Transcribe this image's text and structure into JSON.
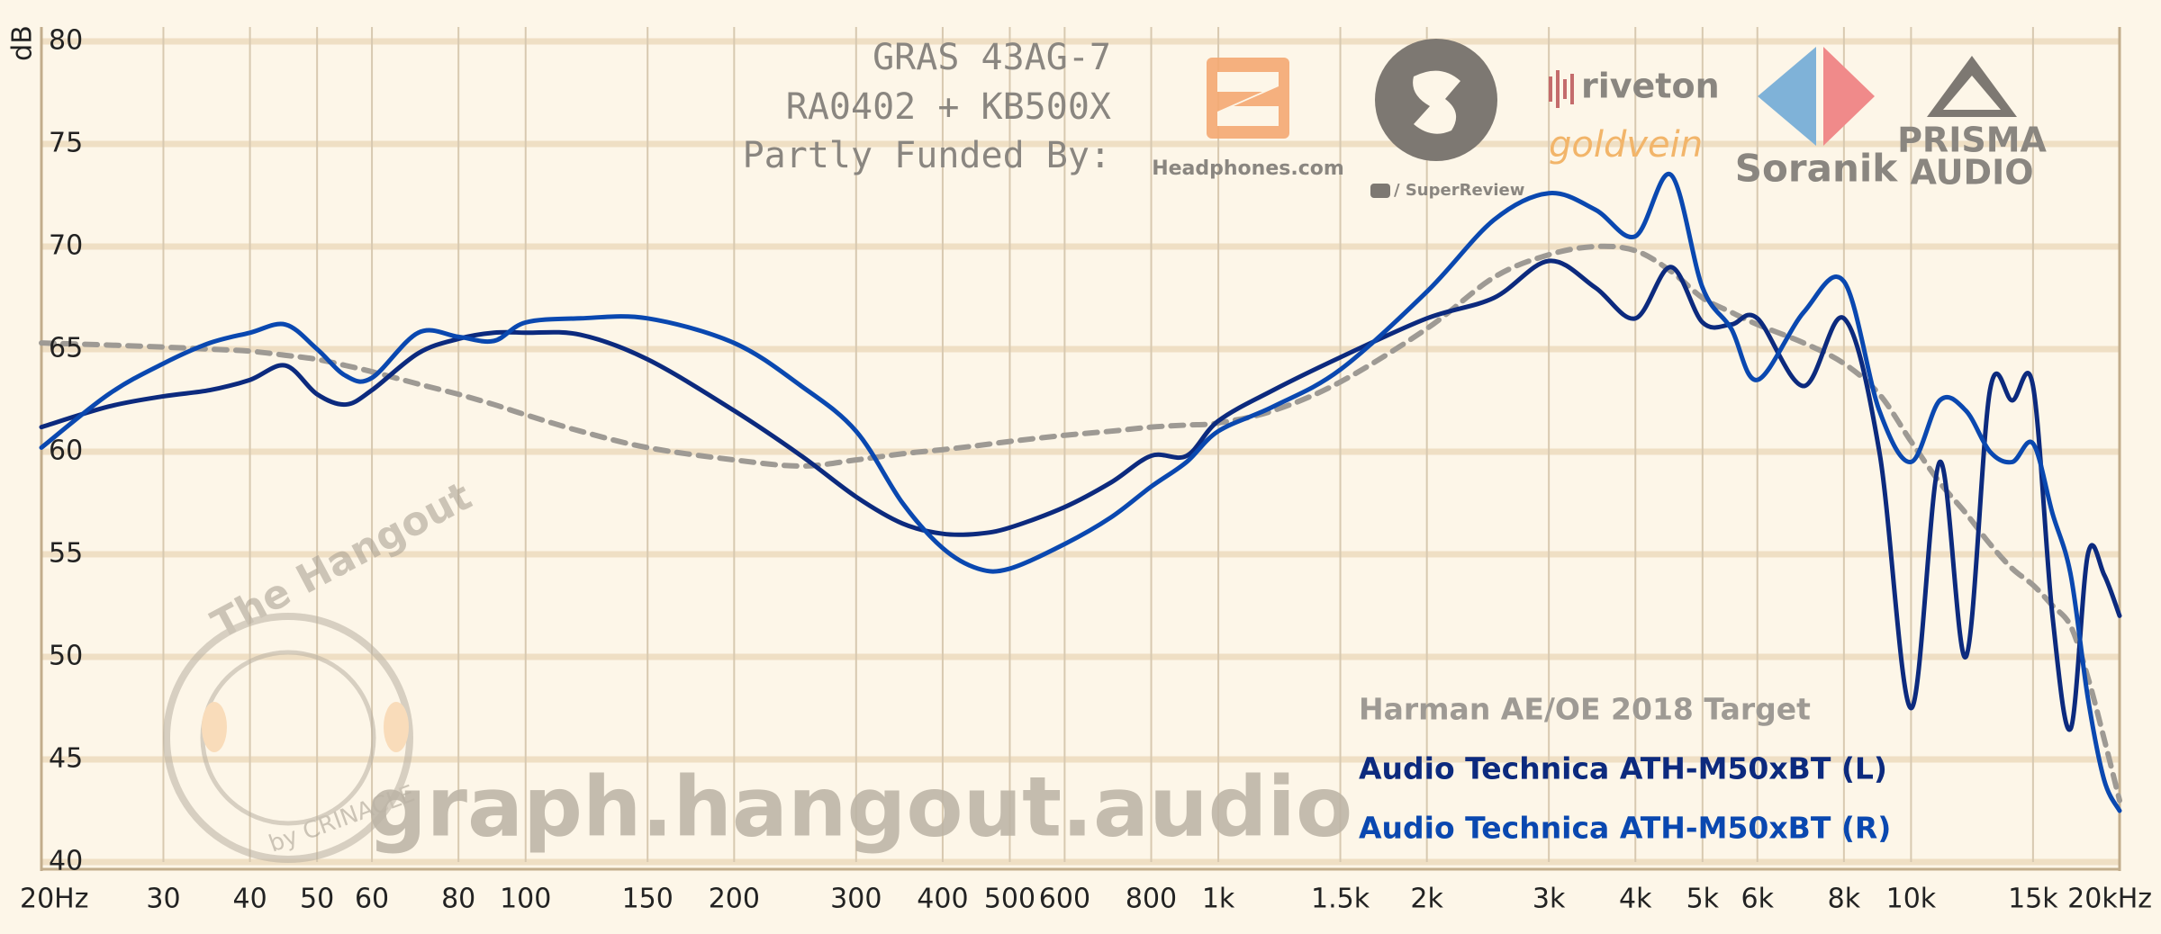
{
  "chart_data": {
    "type": "line",
    "ylabel": "dB",
    "header": [
      "GRAS 43AG-7",
      "RA0402 + KB500X",
      "Partly Funded By:"
    ],
    "watermark": "graph.hangout.audio",
    "logos": [
      "Headphones.com",
      "/ SuperReview",
      "riveton",
      "goldvein",
      "Soranik",
      "PRISMA",
      "AUDIO",
      "The Hangout",
      "by CRINACLE"
    ],
    "log_x": true,
    "grid": true,
    "legend": "lower right",
    "xlim": [
      20,
      20000
    ],
    "ylim": [
      40,
      80
    ],
    "yticks": [
      40,
      45,
      50,
      55,
      60,
      65,
      70,
      75,
      80
    ],
    "xticks": [
      {
        "value": 20,
        "label": "20Hz"
      },
      30,
      40,
      50,
      60,
      80,
      100,
      150,
      200,
      300,
      400,
      500,
      600,
      800,
      {
        "value": 1000,
        "label": "1k"
      },
      {
        "value": 1500,
        "label": "1.5k"
      },
      {
        "value": 2000,
        "label": "2k"
      },
      {
        "value": 3000,
        "label": "3k"
      },
      {
        "value": 4000,
        "label": "4k"
      },
      {
        "value": 5000,
        "label": "5k"
      },
      {
        "value": 6000,
        "label": "6k"
      },
      {
        "value": 8000,
        "label": "8k"
      },
      {
        "value": 10000,
        "label": "10k"
      },
      {
        "value": 15000,
        "label": "15k"
      },
      {
        "value": 20000,
        "label": "20kHz"
      }
    ],
    "x": [
      20,
      25,
      30,
      35,
      40,
      45,
      50,
      55,
      60,
      70,
      80,
      90,
      100,
      120,
      150,
      200,
      250,
      300,
      350,
      400,
      450,
      500,
      600,
      700,
      800,
      900,
      1000,
      1200,
      1500,
      2000,
      2500,
      3000,
      3500,
      4000,
      4500,
      5000,
      5500,
      6000,
      7000,
      8000,
      9000,
      10000,
      11000,
      12000,
      13000,
      14000,
      15000,
      16000,
      17000,
      18000,
      19000,
      20000
    ],
    "series": [
      {
        "name": "Harman AE/OE 2018 Target",
        "color": "#9e9a94",
        "dashed": true,
        "values": [
          65.3,
          65.2,
          65.1,
          65.0,
          64.9,
          64.7,
          64.5,
          64.2,
          63.9,
          63.3,
          62.8,
          62.3,
          61.8,
          61.0,
          60.2,
          59.6,
          59.3,
          59.6,
          59.9,
          60.1,
          60.3,
          60.5,
          60.8,
          61.0,
          61.2,
          61.3,
          61.4,
          62.0,
          63.4,
          66.0,
          68.5,
          69.6,
          70.0,
          69.8,
          68.8,
          67.5,
          66.8,
          66.2,
          65.3,
          64.3,
          62.8,
          60.5,
          58.5,
          57.0,
          55.5,
          54.3,
          53.5,
          52.5,
          51.5,
          49.0,
          46.0,
          43.0
        ]
      },
      {
        "name": "Audio Technica ATH-M50xBT (L)",
        "color": "#0c2a7e",
        "dashed": false,
        "values": [
          61.2,
          62.2,
          62.7,
          63.0,
          63.5,
          64.2,
          62.8,
          62.3,
          63.0,
          64.8,
          65.5,
          65.8,
          65.8,
          65.7,
          64.5,
          62.0,
          59.8,
          57.8,
          56.5,
          56.0,
          56.0,
          56.3,
          57.3,
          58.5,
          59.8,
          59.8,
          61.5,
          63.0,
          64.6,
          66.5,
          67.5,
          69.3,
          68.0,
          66.5,
          69.0,
          66.3,
          66.2,
          66.5,
          63.2,
          66.5,
          60.0,
          47.5,
          59.5,
          50.0,
          63.0,
          62.5,
          63.2,
          52.0,
          46.5,
          55.0,
          54.0,
          52.0
        ]
      },
      {
        "name": "Audio Technica ATH-M50xBT (R)",
        "color": "#0a48b0",
        "dashed": false,
        "values": [
          60.2,
          62.8,
          64.3,
          65.3,
          65.8,
          66.2,
          65.0,
          63.7,
          63.6,
          65.8,
          65.6,
          65.4,
          66.3,
          66.5,
          66.5,
          65.3,
          63.2,
          61.0,
          57.5,
          55.3,
          54.3,
          54.3,
          55.5,
          56.8,
          58.3,
          59.5,
          61.0,
          62.2,
          64.0,
          67.8,
          71.3,
          72.6,
          71.8,
          70.5,
          73.5,
          68.0,
          66.0,
          63.5,
          66.8,
          68.3,
          62.0,
          59.5,
          62.5,
          62.0,
          60.0,
          59.5,
          60.4,
          57.0,
          54.0,
          48.0,
          44.0,
          42.5
        ]
      }
    ]
  }
}
